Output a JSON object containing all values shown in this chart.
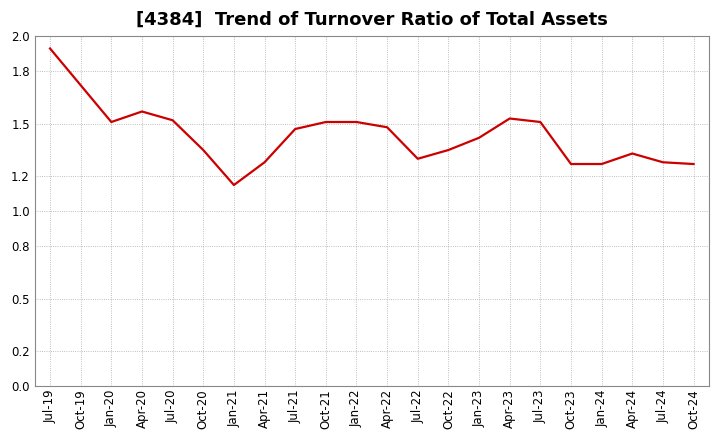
{
  "title": "[4384]  Trend of Turnover Ratio of Total Assets",
  "x_labels": [
    "Jul-19",
    "Oct-19",
    "Jan-20",
    "Apr-20",
    "Jul-20",
    "Oct-20",
    "Jan-21",
    "Apr-21",
    "Jul-21",
    "Oct-21",
    "Jan-22",
    "Apr-22",
    "Jul-22",
    "Oct-22",
    "Jan-23",
    "Apr-23",
    "Jul-23",
    "Oct-23",
    "Jan-24",
    "Apr-24",
    "Jul-24",
    "Oct-24"
  ],
  "y_values": [
    1.93,
    1.72,
    1.51,
    1.57,
    1.52,
    1.35,
    1.15,
    1.28,
    1.47,
    1.51,
    1.51,
    1.48,
    1.3,
    1.35,
    1.42,
    1.53,
    1.51,
    1.27,
    1.27,
    1.33,
    1.28,
    1.27
  ],
  "line_color": "#cc0000",
  "background_color": "#ffffff",
  "grid_color": "#aaaaaa",
  "ylim": [
    0.0,
    2.0
  ],
  "yticks": [
    0.0,
    0.2,
    0.5,
    0.8,
    1.0,
    1.2,
    1.5,
    1.8,
    2.0
  ],
  "title_fontsize": 13,
  "tick_fontsize": 8.5,
  "line_width": 1.6
}
